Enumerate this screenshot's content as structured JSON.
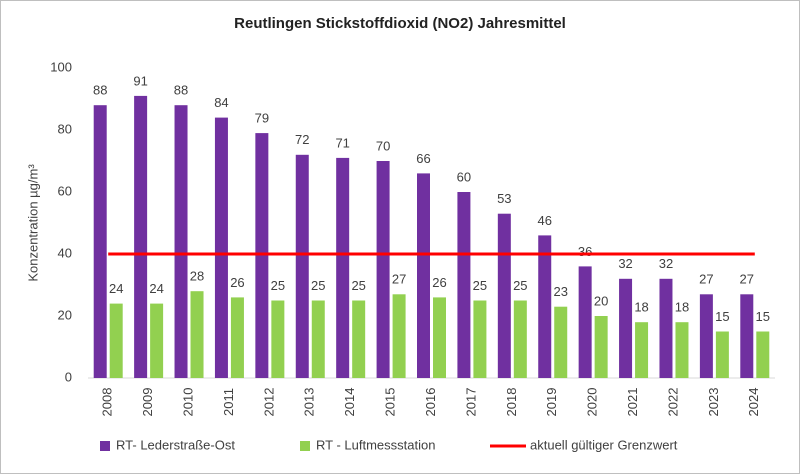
{
  "chart_data": {
    "type": "bar",
    "title": "Reutlingen Stickstoffdioxid (NO2) Jahresmittel",
    "y_label": "Konzentration µg/m³",
    "categories": [
      "2008",
      "2009",
      "2010",
      "2011",
      "2012",
      "2013",
      "2014",
      "2015",
      "2016",
      "2017",
      "2018",
      "2019",
      "2020",
      "2021",
      "2022",
      "2023",
      "2024"
    ],
    "series": [
      {
        "name": "RT- Lederstraße-Ost",
        "color": "#7030a0",
        "type": "bar",
        "values": [
          88,
          91,
          88,
          84,
          79,
          72,
          71,
          70,
          66,
          60,
          53,
          46,
          36,
          32,
          32,
          27,
          27
        ]
      },
      {
        "name": "RT - Luftmessstation",
        "color": "#92d050",
        "type": "bar",
        "values": [
          24,
          24,
          28,
          26,
          25,
          25,
          25,
          27,
          26,
          25,
          25,
          23,
          20,
          18,
          18,
          15,
          15
        ]
      },
      {
        "name": "aktuell gültiger Grenzwert",
        "color": "#ff0000",
        "type": "line",
        "values": [
          40,
          40,
          40,
          40,
          40,
          40,
          40,
          40,
          40,
          40,
          40,
          40,
          40,
          40,
          40,
          40,
          40
        ]
      }
    ],
    "ylim": [
      0,
      100
    ],
    "yticks": [
      0,
      20,
      40,
      60,
      80,
      100
    ],
    "grid": false,
    "legend": "bottom"
  }
}
